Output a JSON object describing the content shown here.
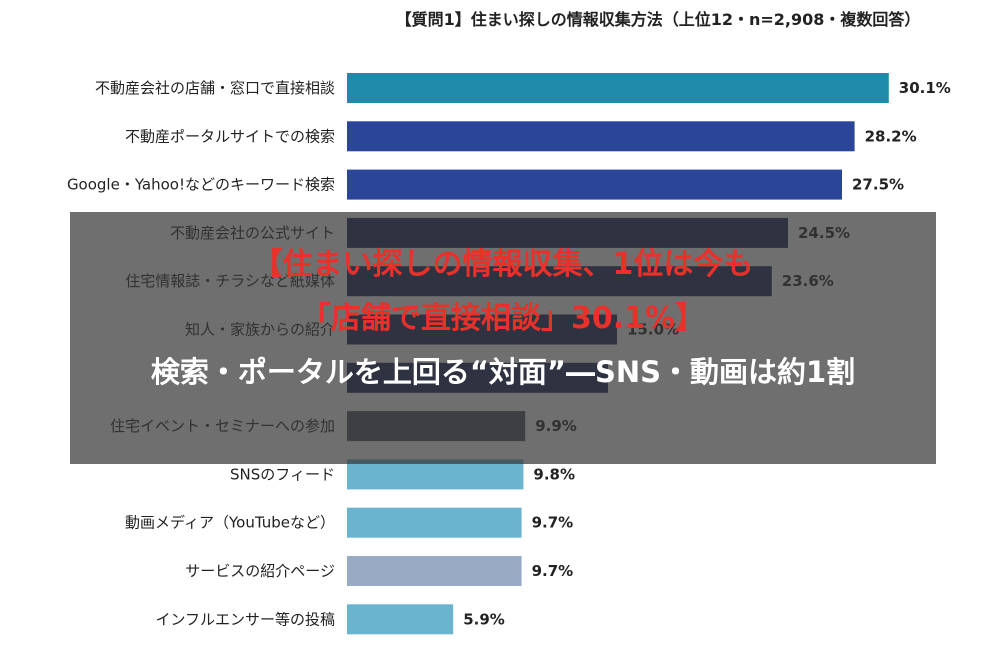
{
  "chart_data": {
    "type": "bar",
    "orientation": "horizontal",
    "title": "【質問1】住まい探しの情報収集方法（上位12・n=2,908・複数回答）",
    "categories": [
      "不動産会社の店舗・窓口で直接相談",
      "不動産ポータルサイトでの検索",
      "Google・Yahoo!などのキーワード検索",
      "不動産会社の公式サイト",
      "住宅情報誌・チラシなど紙媒体",
      "知人・家族からの紹介",
      "",
      "住宅イベント・セミナーへの参加",
      "SNSのフィード",
      "動画メディア（YouTubeなど）",
      "サービスの紹介ページ",
      "インフルエンサー等の投稿"
    ],
    "values": [
      30.1,
      28.2,
      27.5,
      24.5,
      23.6,
      15.0,
      14.5,
      9.9,
      9.8,
      9.7,
      9.7,
      5.9
    ],
    "value_labels": [
      "30.1%",
      "28.2%",
      "27.5%",
      "24.5%",
      "23.6%",
      "15.0%",
      "",
      "9.9%",
      "9.8%",
      "9.7%",
      "9.7%",
      "5.9%"
    ],
    "colors": [
      "#1f8aa9",
      "#2b4598",
      "#2b4598",
      "#1b2a5c",
      "#1b2a5c",
      "#1b2a5c",
      "#1b2a5c",
      "#4b5561",
      "#6ab4cf",
      "#6ab4cf",
      "#98aac4",
      "#6ab4cf"
    ],
    "xlim": [
      0,
      32
    ],
    "grid": false,
    "legend": "none"
  },
  "overlay": {
    "headline_line1": "【住まい探しの情報収集、1位は今も",
    "headline_line2": "「店舗で直接相談」30.1%】",
    "headline_line3": "検索・ポータルを上回る“対面”―SNS・動画は約1割"
  },
  "colors": {
    "overlay_bg": "#373737",
    "headline_red": "#e8312a",
    "headline_white": "#ffffff"
  }
}
